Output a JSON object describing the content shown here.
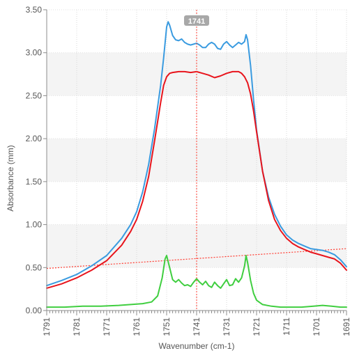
{
  "chart_data": {
    "type": "line",
    "xlabel": "Wavenumber (cm-1)",
    "ylabel": "Absorbance (mm)",
    "xlim": [
      1791,
      1691
    ],
    "ylim": [
      0,
      3.5
    ],
    "x_reversed": true,
    "grid": true,
    "x_ticks": [
      "1791",
      "1781",
      "1771",
      "1761",
      "1751",
      "1741",
      "1731",
      "1721",
      "1711",
      "1701",
      "1691"
    ],
    "x_tick_values": [
      1791,
      1781,
      1771,
      1761,
      1751,
      1741,
      1731,
      1721,
      1711,
      1701,
      1691
    ],
    "y_ticks": [
      "0.00",
      "0.50",
      "1.00",
      "1.50",
      "2.00",
      "2.50",
      "3.00",
      "3.50"
    ],
    "y_tick_values": [
      0,
      0.5,
      1.0,
      1.5,
      2.0,
      2.5,
      3.0,
      3.5
    ],
    "cursor": {
      "x": 1741,
      "label": "1741"
    },
    "baseline": {
      "x": [
        1791,
        1691
      ],
      "y": [
        0.49,
        0.72
      ],
      "color": "#ff3b30"
    },
    "series": [
      {
        "color": "#3a9be0",
        "x": [
          1791,
          1786,
          1781,
          1776,
          1771,
          1766,
          1763,
          1761,
          1759,
          1757,
          1755,
          1753,
          1752,
          1751,
          1750.5,
          1750,
          1749,
          1748,
          1747,
          1746,
          1745,
          1744,
          1743,
          1742,
          1741,
          1740,
          1739,
          1738,
          1737,
          1736,
          1735,
          1734,
          1733,
          1732,
          1731,
          1730,
          1729,
          1728,
          1727,
          1726,
          1725,
          1724.5,
          1724,
          1723,
          1722,
          1721,
          1719,
          1717,
          1715,
          1713,
          1711,
          1709,
          1707,
          1705,
          1703,
          1701,
          1699,
          1697,
          1695,
          1693,
          1691
        ],
        "y": [
          0.29,
          0.35,
          0.42,
          0.52,
          0.64,
          0.84,
          1.0,
          1.15,
          1.38,
          1.7,
          2.12,
          2.62,
          2.94,
          3.3,
          3.36,
          3.32,
          3.2,
          3.15,
          3.14,
          3.16,
          3.12,
          3.1,
          3.09,
          3.1,
          3.11,
          3.09,
          3.06,
          3.06,
          3.1,
          3.12,
          3.1,
          3.05,
          3.04,
          3.1,
          3.13,
          3.09,
          3.06,
          3.09,
          3.12,
          3.1,
          3.13,
          3.21,
          3.15,
          2.85,
          2.45,
          2.1,
          1.62,
          1.32,
          1.12,
          0.98,
          0.88,
          0.82,
          0.78,
          0.75,
          0.72,
          0.71,
          0.7,
          0.68,
          0.65,
          0.59,
          0.51
        ]
      },
      {
        "color": "#e8141c",
        "x": [
          1791,
          1786,
          1781,
          1776,
          1771,
          1766,
          1763,
          1761,
          1759,
          1757,
          1755,
          1753,
          1752,
          1751,
          1750,
          1749,
          1747,
          1745,
          1743,
          1741,
          1739,
          1737,
          1735,
          1733,
          1731,
          1729,
          1727,
          1726,
          1725,
          1724,
          1723,
          1722,
          1721,
          1719,
          1717,
          1715,
          1713,
          1711,
          1709,
          1707,
          1705,
          1703,
          1701,
          1699,
          1697,
          1695,
          1693,
          1691
        ],
        "y": [
          0.26,
          0.31,
          0.38,
          0.47,
          0.58,
          0.76,
          0.92,
          1.06,
          1.27,
          1.56,
          1.98,
          2.42,
          2.62,
          2.72,
          2.76,
          2.77,
          2.78,
          2.78,
          2.77,
          2.78,
          2.76,
          2.74,
          2.71,
          2.73,
          2.76,
          2.78,
          2.78,
          2.76,
          2.72,
          2.65,
          2.52,
          2.32,
          2.08,
          1.62,
          1.28,
          1.06,
          0.93,
          0.84,
          0.78,
          0.74,
          0.71,
          0.68,
          0.66,
          0.64,
          0.62,
          0.6,
          0.55,
          0.47
        ]
      },
      {
        "color": "#3fce3f",
        "x": [
          1791,
          1785,
          1779,
          1773,
          1767,
          1763,
          1759,
          1756,
          1754,
          1752.5,
          1751.5,
          1751,
          1750,
          1749,
          1748,
          1747,
          1746,
          1745,
          1744,
          1743,
          1742,
          1741,
          1740,
          1739,
          1738,
          1737,
          1736,
          1735,
          1734,
          1733,
          1732,
          1731,
          1730,
          1729,
          1728,
          1727,
          1726,
          1725,
          1724.5,
          1724,
          1723,
          1722,
          1721,
          1719,
          1716,
          1713,
          1710,
          1706,
          1702,
          1699,
          1696,
          1693,
          1691
        ],
        "y": [
          0.04,
          0.04,
          0.05,
          0.05,
          0.06,
          0.07,
          0.08,
          0.1,
          0.17,
          0.38,
          0.6,
          0.64,
          0.5,
          0.36,
          0.33,
          0.36,
          0.32,
          0.29,
          0.3,
          0.28,
          0.33,
          0.37,
          0.33,
          0.3,
          0.34,
          0.29,
          0.27,
          0.33,
          0.29,
          0.26,
          0.31,
          0.36,
          0.29,
          0.3,
          0.37,
          0.33,
          0.38,
          0.52,
          0.64,
          0.56,
          0.35,
          0.2,
          0.12,
          0.07,
          0.05,
          0.04,
          0.04,
          0.04,
          0.05,
          0.06,
          0.05,
          0.04,
          0.04
        ]
      }
    ]
  }
}
